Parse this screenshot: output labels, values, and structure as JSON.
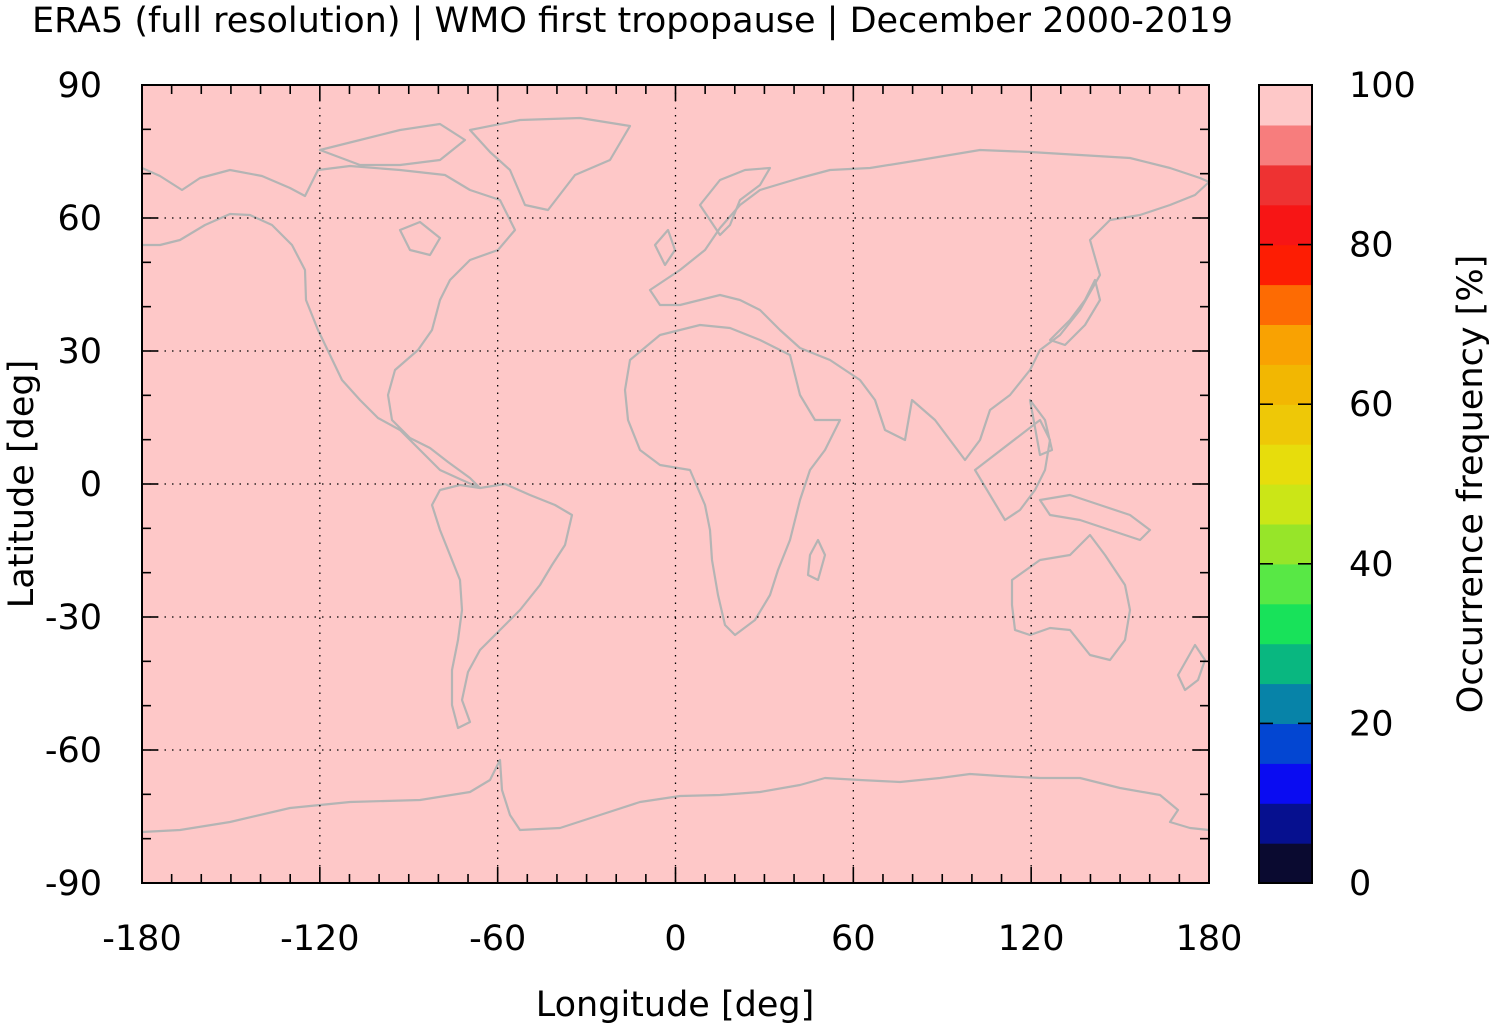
{
  "chart_data": {
    "type": "heatmap",
    "title": "ERA5 (full resolution) | WMO first tropopause | December 2000-2019",
    "xlabel": "Longitude [deg]",
    "ylabel": "Latitude [deg]",
    "xlim": [
      -180,
      180
    ],
    "ylim": [
      -90,
      90
    ],
    "xticks": [
      -180,
      -120,
      -60,
      0,
      60,
      120,
      180
    ],
    "yticks": [
      90,
      60,
      30,
      0,
      -30,
      -60,
      -90
    ],
    "grid": true,
    "field": {
      "description_value": 100,
      "min": 100,
      "max": 100,
      "color": "#fec8c8"
    },
    "colorbar": {
      "label": "Occurrence frequency [%]",
      "range": [
        0,
        100
      ],
      "ticks": [
        0,
        20,
        40,
        60,
        80,
        100
      ],
      "colors": [
        "#0a0a30",
        "#06108f",
        "#0a0cf2",
        "#0346d2",
        "#0783a8",
        "#09b780",
        "#18e25a",
        "#58e845",
        "#97e529",
        "#cbe617",
        "#e7dd0c",
        "#eec807",
        "#f2b702",
        "#f9a202",
        "#fd6b03",
        "#fd1d03",
        "#f71515",
        "#ee3232",
        "#f77d7d",
        "#fec8c8"
      ]
    },
    "coastline_color": "#b4b4b4"
  }
}
